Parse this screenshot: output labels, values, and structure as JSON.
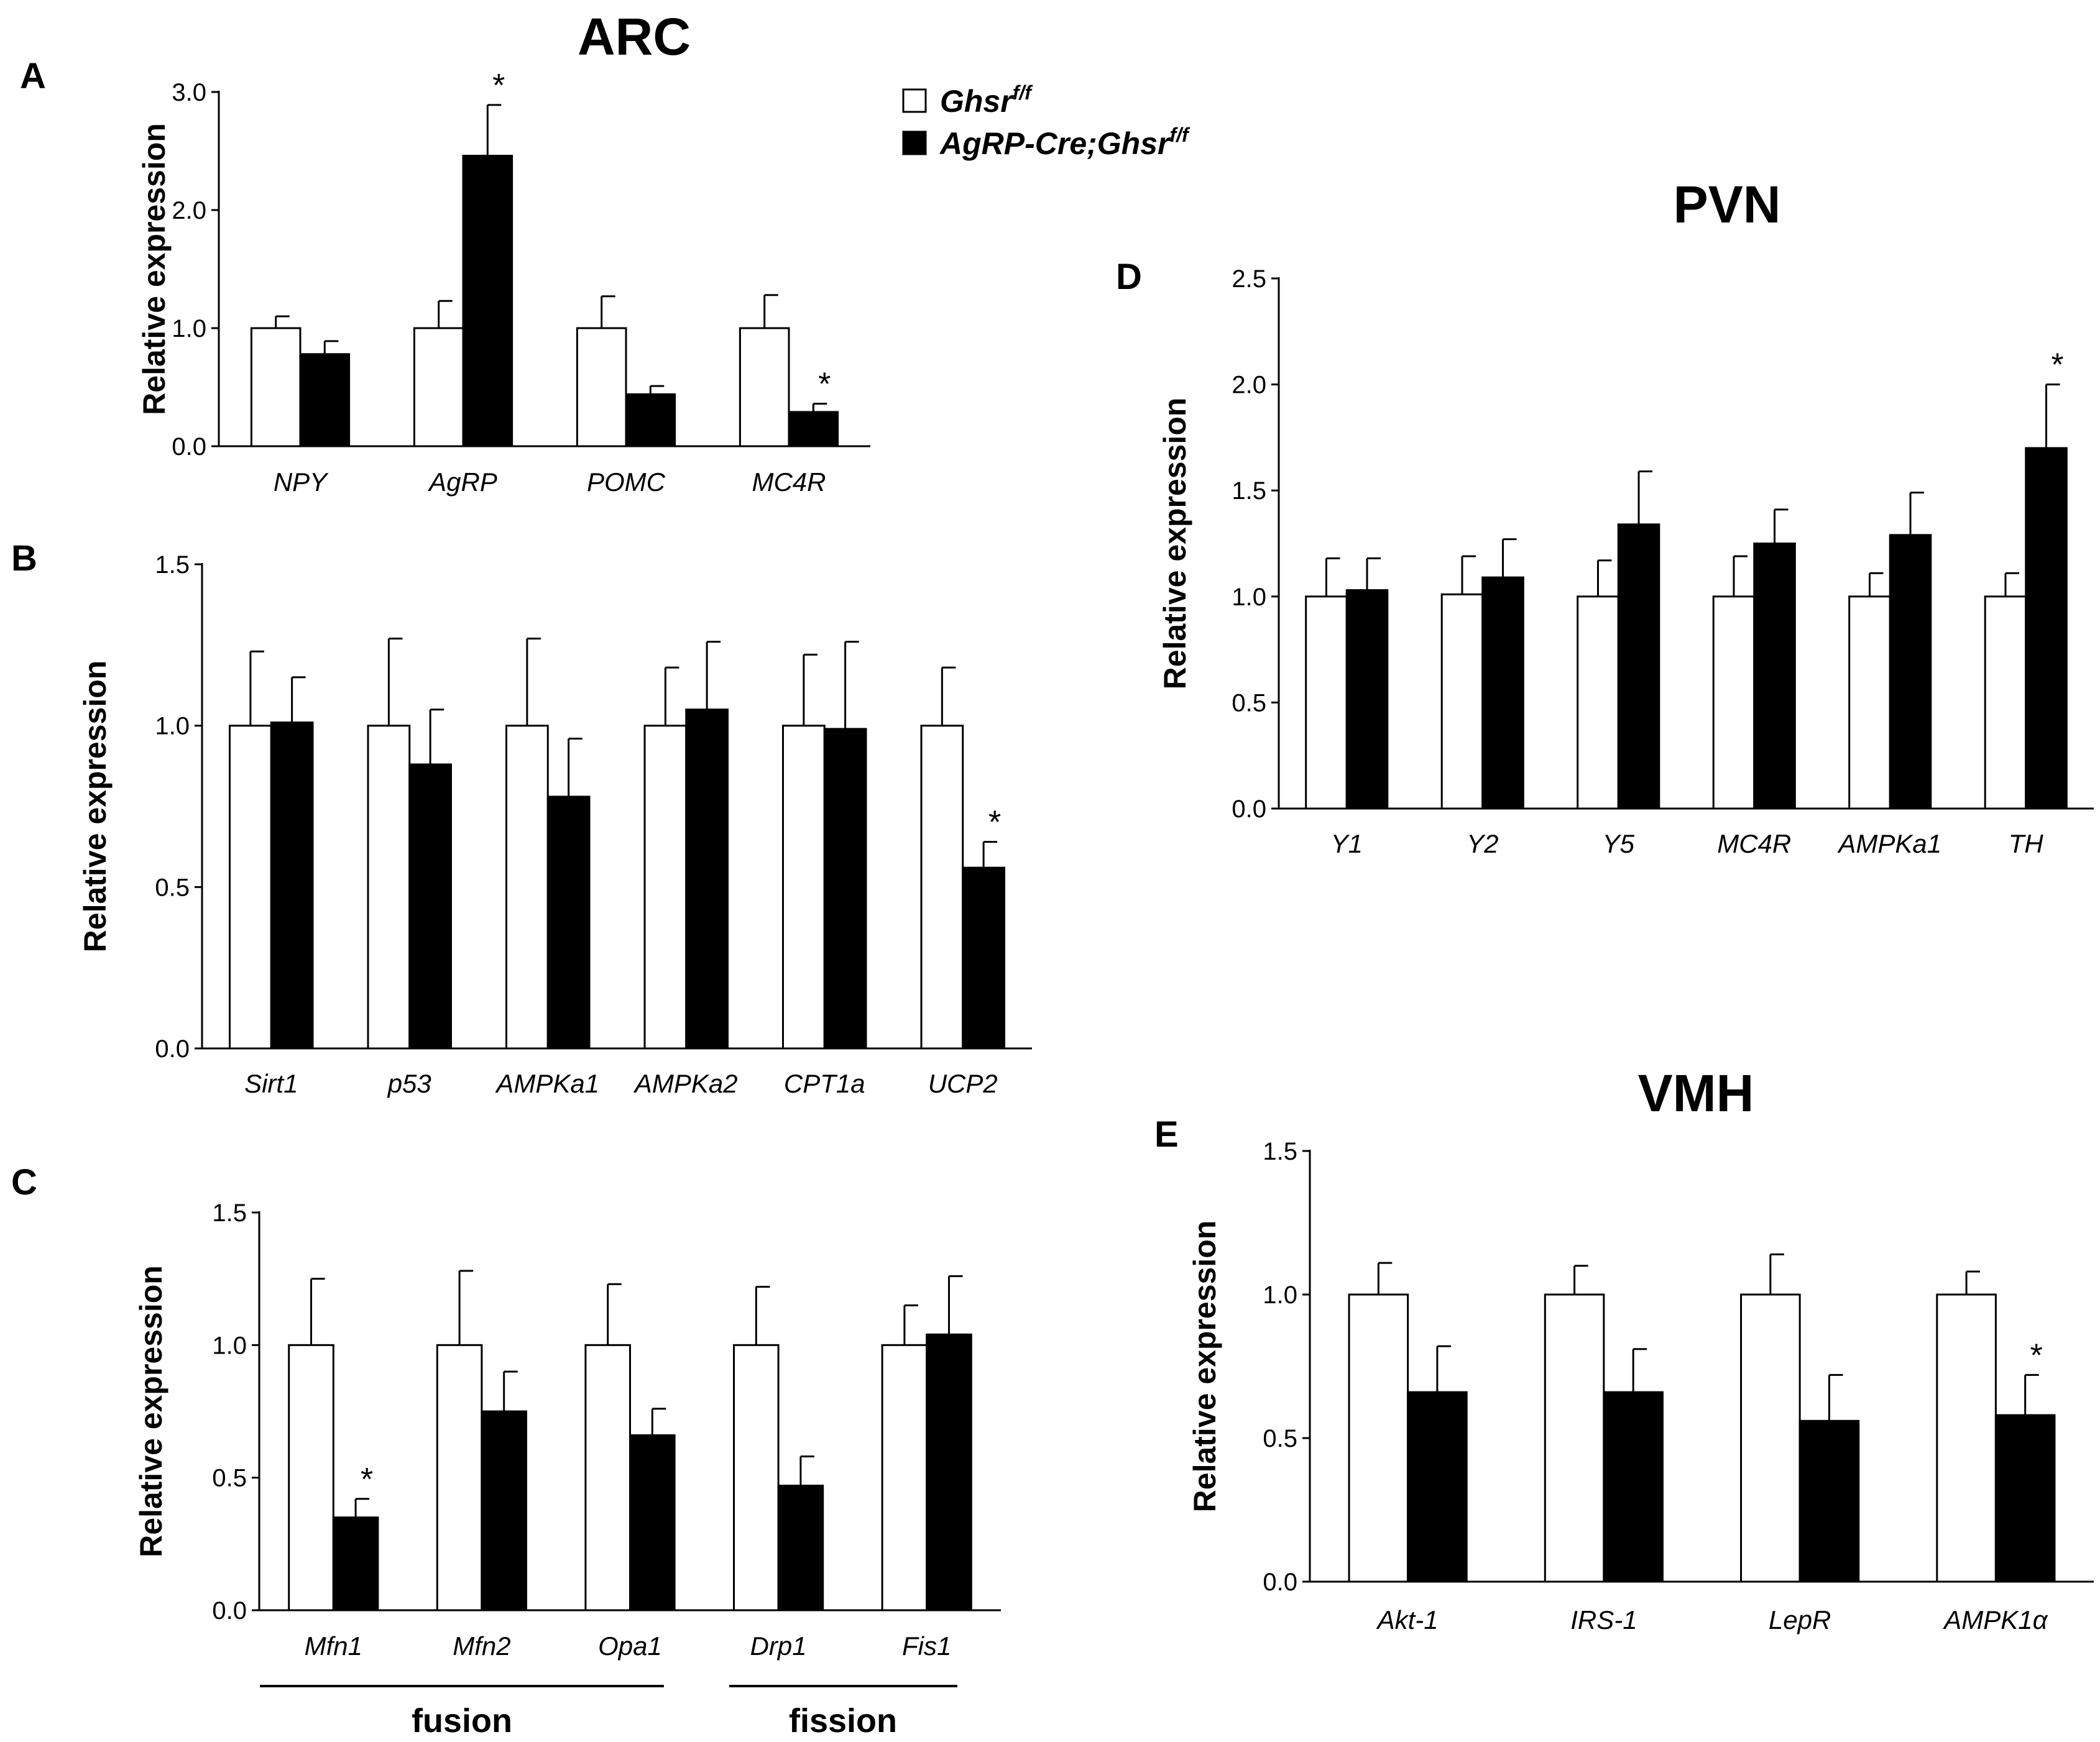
{
  "sections": {
    "arc": "ARC",
    "pvn": "PVN",
    "vmh": "VMH"
  },
  "legend": {
    "control": {
      "base": "Ghsr",
      "sup": "f/f"
    },
    "ko": {
      "base": "AgRP-Cre;Ghsr",
      "sup": "f/f"
    }
  },
  "colors": {
    "control": "#ffffff",
    "ko": "#000000",
    "stroke": "#000000"
  },
  "groups": {
    "fusion": "fusion",
    "fission": "fission"
  },
  "chart_data": [
    {
      "panel": "A",
      "section": "ARC",
      "type": "bar",
      "ylabel": "Relative expression",
      "ylim": [
        0,
        3
      ],
      "ticks": [
        "0.0",
        "1.0",
        "2.0",
        "3.0"
      ],
      "categories": [
        "NPY",
        "AgRP",
        "POMC",
        "MC4R"
      ],
      "series": [
        {
          "name": "Ghsr f/f",
          "values": [
            1.0,
            1.0,
            1.0,
            1.0
          ],
          "errors": [
            0.1,
            0.23,
            0.27,
            0.28
          ]
        },
        {
          "name": "AgRP-Cre;Ghsr f/f",
          "values": [
            0.78,
            2.46,
            0.44,
            0.29
          ],
          "errors": [
            0.11,
            0.43,
            0.07,
            0.07
          ]
        }
      ],
      "significance": [
        "",
        "*",
        "",
        "*"
      ]
    },
    {
      "panel": "B",
      "type": "bar",
      "ylabel": "Relative expression",
      "ylim": [
        0,
        1.5
      ],
      "ticks": [
        "0.0",
        "0.5",
        "1.0",
        "1.5"
      ],
      "categories": [
        "Sirt1",
        "p53",
        "AMPKa1",
        "AMPKa2",
        "CPT1a",
        "UCP2"
      ],
      "series": [
        {
          "name": "Ghsr f/f",
          "values": [
            1.0,
            1.0,
            1.0,
            1.0,
            1.0,
            1.0
          ],
          "errors": [
            0.23,
            0.27,
            0.27,
            0.18,
            0.22,
            0.18
          ]
        },
        {
          "name": "AgRP-Cre;Ghsr f/f",
          "values": [
            1.01,
            0.88,
            0.78,
            1.05,
            0.99,
            0.56
          ],
          "errors": [
            0.14,
            0.17,
            0.18,
            0.21,
            0.27,
            0.08
          ]
        }
      ],
      "significance": [
        "",
        "",
        "",
        "",
        "",
        "*"
      ]
    },
    {
      "panel": "C",
      "type": "bar",
      "ylabel": "Relative expression",
      "ylim": [
        0,
        1.5
      ],
      "ticks": [
        "0.0",
        "0.5",
        "1.0",
        "1.5"
      ],
      "categories": [
        "Mfn1",
        "Mfn2",
        "Opa1",
        "Drp1",
        "Fis1"
      ],
      "series": [
        {
          "name": "Ghsr f/f",
          "values": [
            1.0,
            1.0,
            1.0,
            1.0,
            1.0
          ],
          "errors": [
            0.25,
            0.28,
            0.23,
            0.22,
            0.15
          ]
        },
        {
          "name": "AgRP-Cre;Ghsr f/f",
          "values": [
            0.35,
            0.75,
            0.66,
            0.47,
            1.04
          ],
          "errors": [
            0.07,
            0.15,
            0.1,
            0.11,
            0.22
          ]
        }
      ],
      "significance": [
        "*",
        "",
        "",
        "",
        ""
      ],
      "category_groups": [
        {
          "label": "fusion",
          "categories": [
            "Mfn1",
            "Mfn2",
            "Opa1"
          ]
        },
        {
          "label": "fission",
          "categories": [
            "Drp1",
            "Fis1"
          ]
        }
      ]
    },
    {
      "panel": "D",
      "section": "PVN",
      "type": "bar",
      "ylabel": "Relative expression",
      "ylim": [
        0,
        2.5
      ],
      "ticks": [
        "0.0",
        "0.5",
        "1.0",
        "1.5",
        "2.0",
        "2.5"
      ],
      "categories": [
        "Y1",
        "Y2",
        "Y5",
        "MC4R",
        "AMPKa1",
        "TH"
      ],
      "series": [
        {
          "name": "Ghsr f/f",
          "values": [
            1.0,
            1.01,
            1.0,
            1.0,
            1.0,
            1.0
          ],
          "errors": [
            0.18,
            0.18,
            0.17,
            0.19,
            0.11,
            0.11
          ]
        },
        {
          "name": "AgRP-Cre;Ghsr f/f",
          "values": [
            1.03,
            1.09,
            1.34,
            1.25,
            1.29,
            1.7
          ],
          "errors": [
            0.15,
            0.18,
            0.25,
            0.16,
            0.2,
            0.3
          ]
        }
      ],
      "significance": [
        "",
        "",
        "",
        "",
        "",
        "*"
      ]
    },
    {
      "panel": "E",
      "section": "VMH",
      "type": "bar",
      "ylabel": "Relative expression",
      "ylim": [
        0,
        1.5
      ],
      "ticks": [
        "0.0",
        "0.5",
        "1.0",
        "1.5"
      ],
      "categories": [
        "Akt-1",
        "IRS-1",
        "LepR",
        "AMPK1α"
      ],
      "series": [
        {
          "name": "Ghsr f/f",
          "values": [
            1.0,
            1.0,
            1.0,
            1.0
          ],
          "errors": [
            0.11,
            0.1,
            0.14,
            0.08
          ]
        },
        {
          "name": "AgRP-Cre;Ghsr f/f",
          "values": [
            0.66,
            0.66,
            0.56,
            0.58
          ],
          "errors": [
            0.16,
            0.15,
            0.16,
            0.14
          ]
        }
      ],
      "significance": [
        "",
        "",
        "",
        "*"
      ]
    }
  ]
}
